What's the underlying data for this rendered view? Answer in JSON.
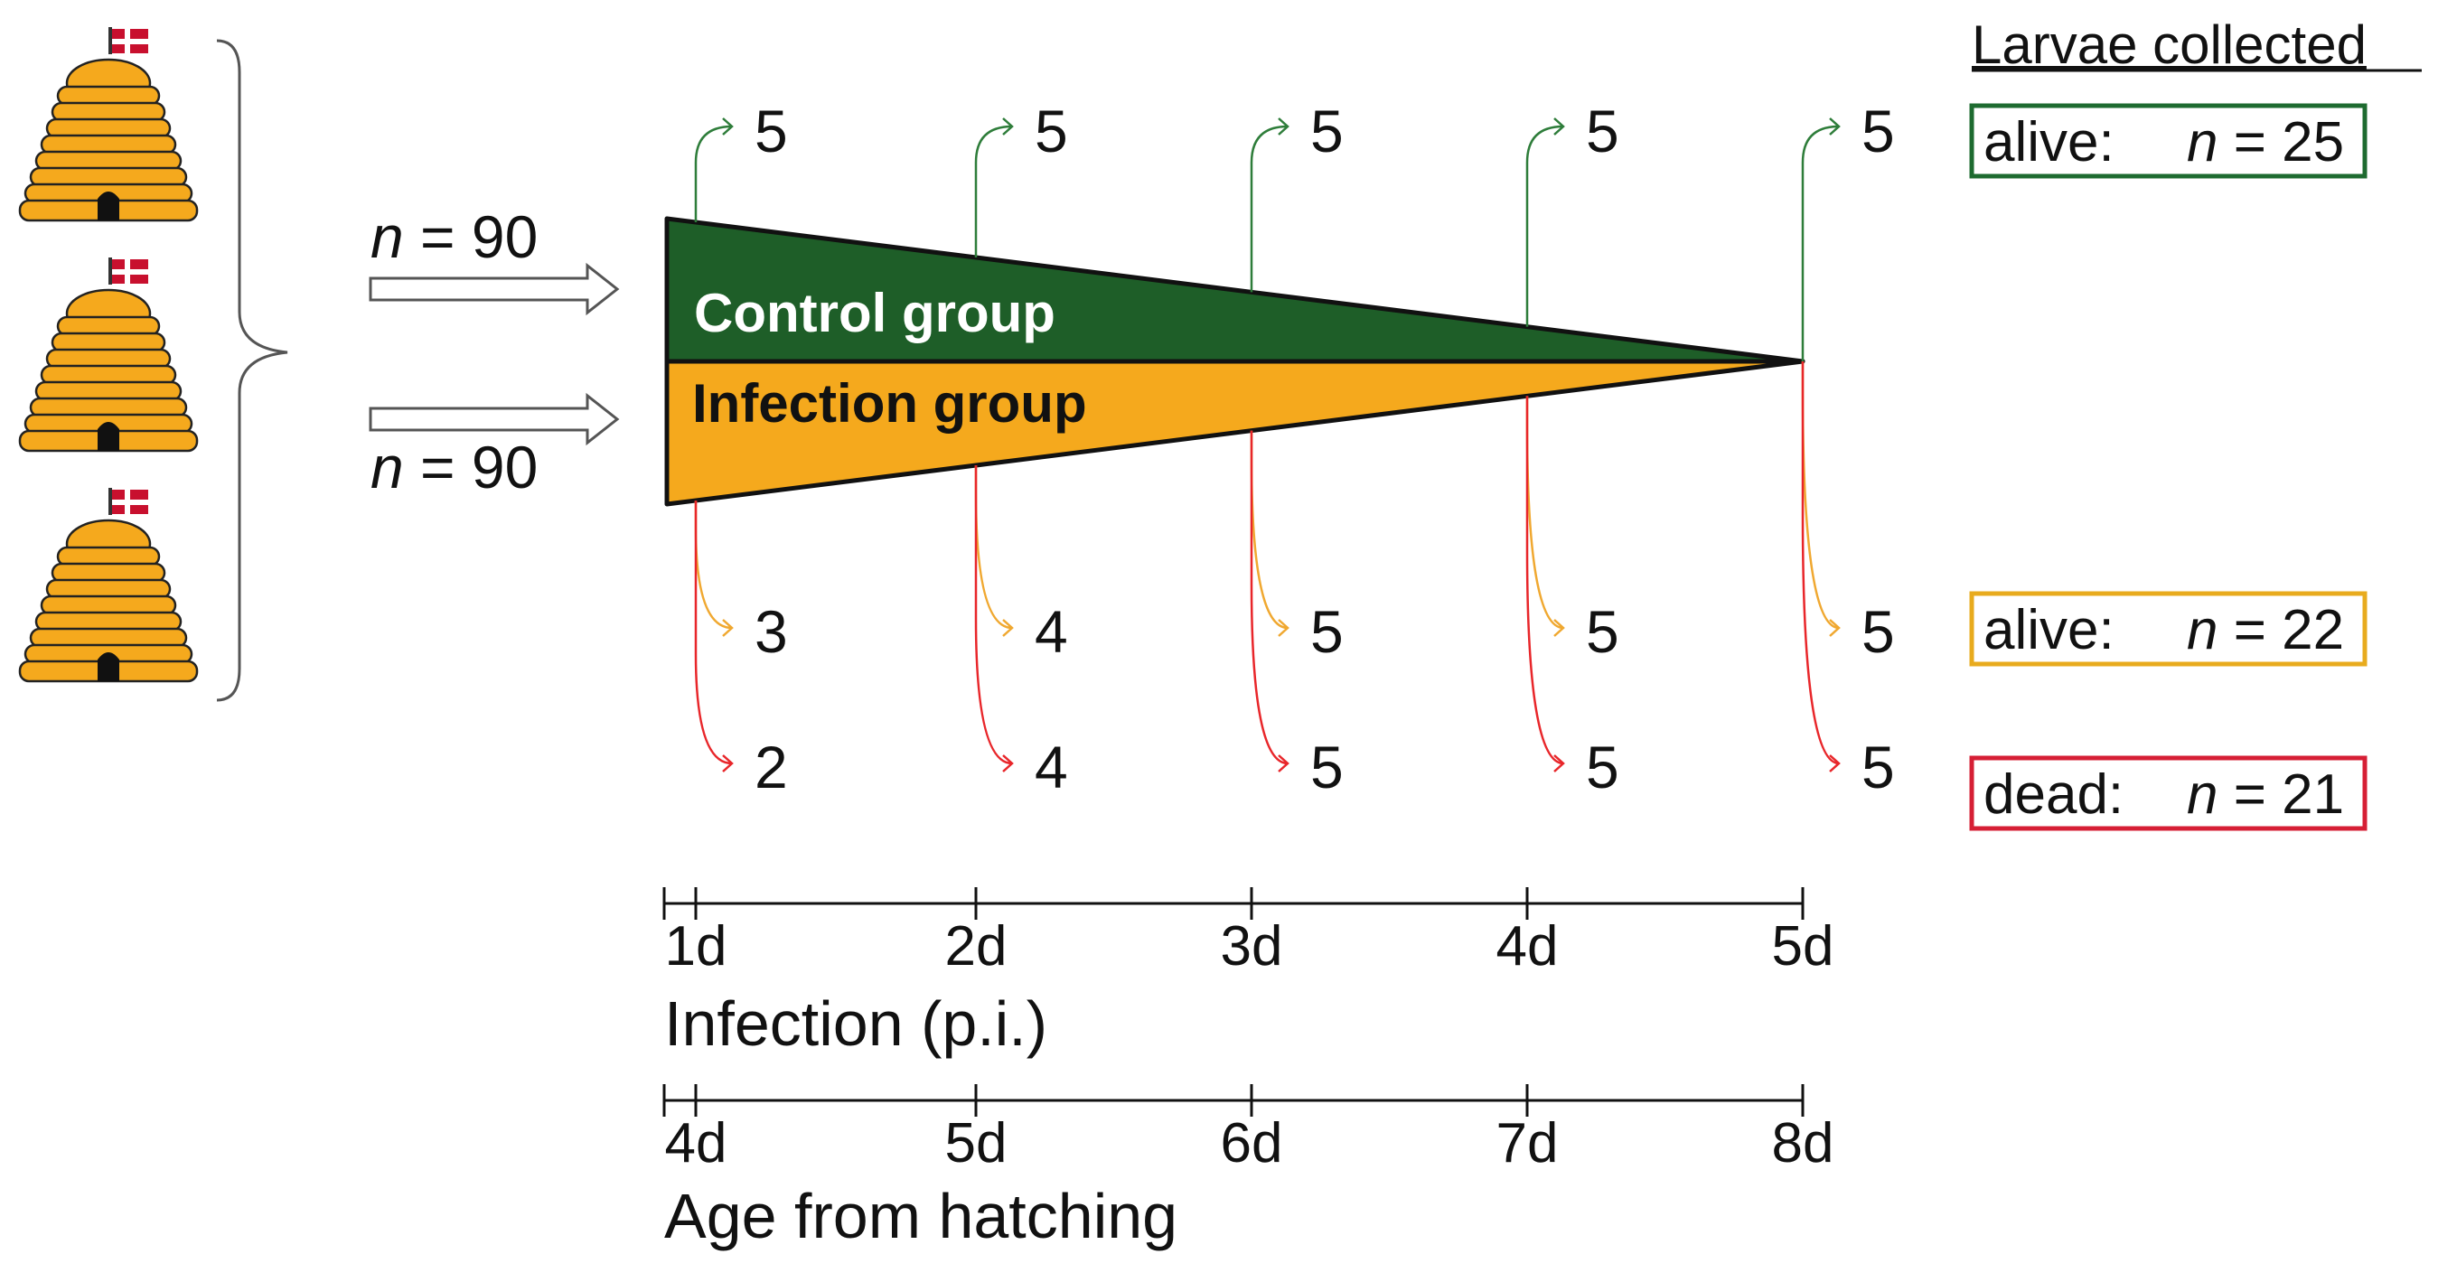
{
  "hives": {
    "count": 3
  },
  "inputs": {
    "top": {
      "n_var": "n",
      "n_rest": " = 90"
    },
    "bottom": {
      "n_var": "n",
      "n_rest": " = 90"
    }
  },
  "groups": {
    "control": {
      "label": "Control group",
      "color": "#1e5e28"
    },
    "infection": {
      "label": "Infection group",
      "color": "#f5a91d"
    }
  },
  "sampling": {
    "control": [
      "5",
      "5",
      "5",
      "5",
      "5"
    ],
    "infection_alive": [
      "3",
      "4",
      "5",
      "5",
      "5"
    ],
    "infection_dead": [
      "2",
      "4",
      "5",
      "5",
      "5"
    ]
  },
  "colors": {
    "control_arrow": "#2e7d3a",
    "alive_arrow": "#f0a830",
    "dead_arrow": "#e8262a",
    "alive_box": "#e8ab1e",
    "dead_box": "#d61f35",
    "control_box": "#1e6b30"
  },
  "collected": {
    "heading": "Larvae collected",
    "control": {
      "label": "alive:",
      "n_var": "n",
      "n_rest": " = 25"
    },
    "infection_alive": {
      "label": "alive:",
      "n_var": "n",
      "n_rest": " = 22"
    },
    "infection_dead": {
      "label": "dead:",
      "n_var": "n",
      "n_rest": " = 21"
    }
  },
  "timeline_pi": {
    "ticks": [
      "1d",
      "2d",
      "3d",
      "4d",
      "5d"
    ],
    "label": "Infection (p.i.)"
  },
  "timeline_age": {
    "ticks": [
      "4d",
      "5d",
      "6d",
      "7d",
      "8d"
    ],
    "label": "Age from hatching"
  }
}
